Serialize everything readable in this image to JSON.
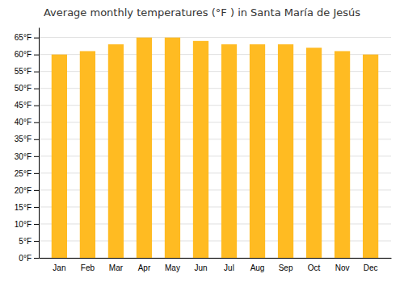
{
  "chart_data": {
    "type": "bar",
    "title": "Average monthly temperatures (°F ) in Santa María de Jesús",
    "categories": [
      "Jan",
      "Feb",
      "Mar",
      "Apr",
      "May",
      "Jun",
      "Jul",
      "Aug",
      "Sep",
      "Oct",
      "Nov",
      "Dec"
    ],
    "values": [
      60,
      61,
      63,
      65,
      65,
      64,
      63,
      63,
      63,
      62,
      61,
      60
    ],
    "color": "#FFBB22",
    "ylim": [
      0,
      68
    ],
    "yticks": [
      {
        "value": 0,
        "label": "0°F"
      },
      {
        "value": 5,
        "label": "5°F"
      },
      {
        "value": 10,
        "label": "10°F"
      },
      {
        "value": 15,
        "label": "15°F"
      },
      {
        "value": 20,
        "label": "20°F"
      },
      {
        "value": 25,
        "label": "25°F"
      },
      {
        "value": 30,
        "label": "30°F"
      },
      {
        "value": 35,
        "label": "35°F"
      },
      {
        "value": 40,
        "label": "40°F"
      },
      {
        "value": 45,
        "label": "45°F"
      },
      {
        "value": 50,
        "label": "50°F"
      },
      {
        "value": 55,
        "label": "55°F"
      },
      {
        "value": 60,
        "label": "60°F"
      },
      {
        "value": 65,
        "label": "65°F"
      }
    ],
    "grid": true
  }
}
